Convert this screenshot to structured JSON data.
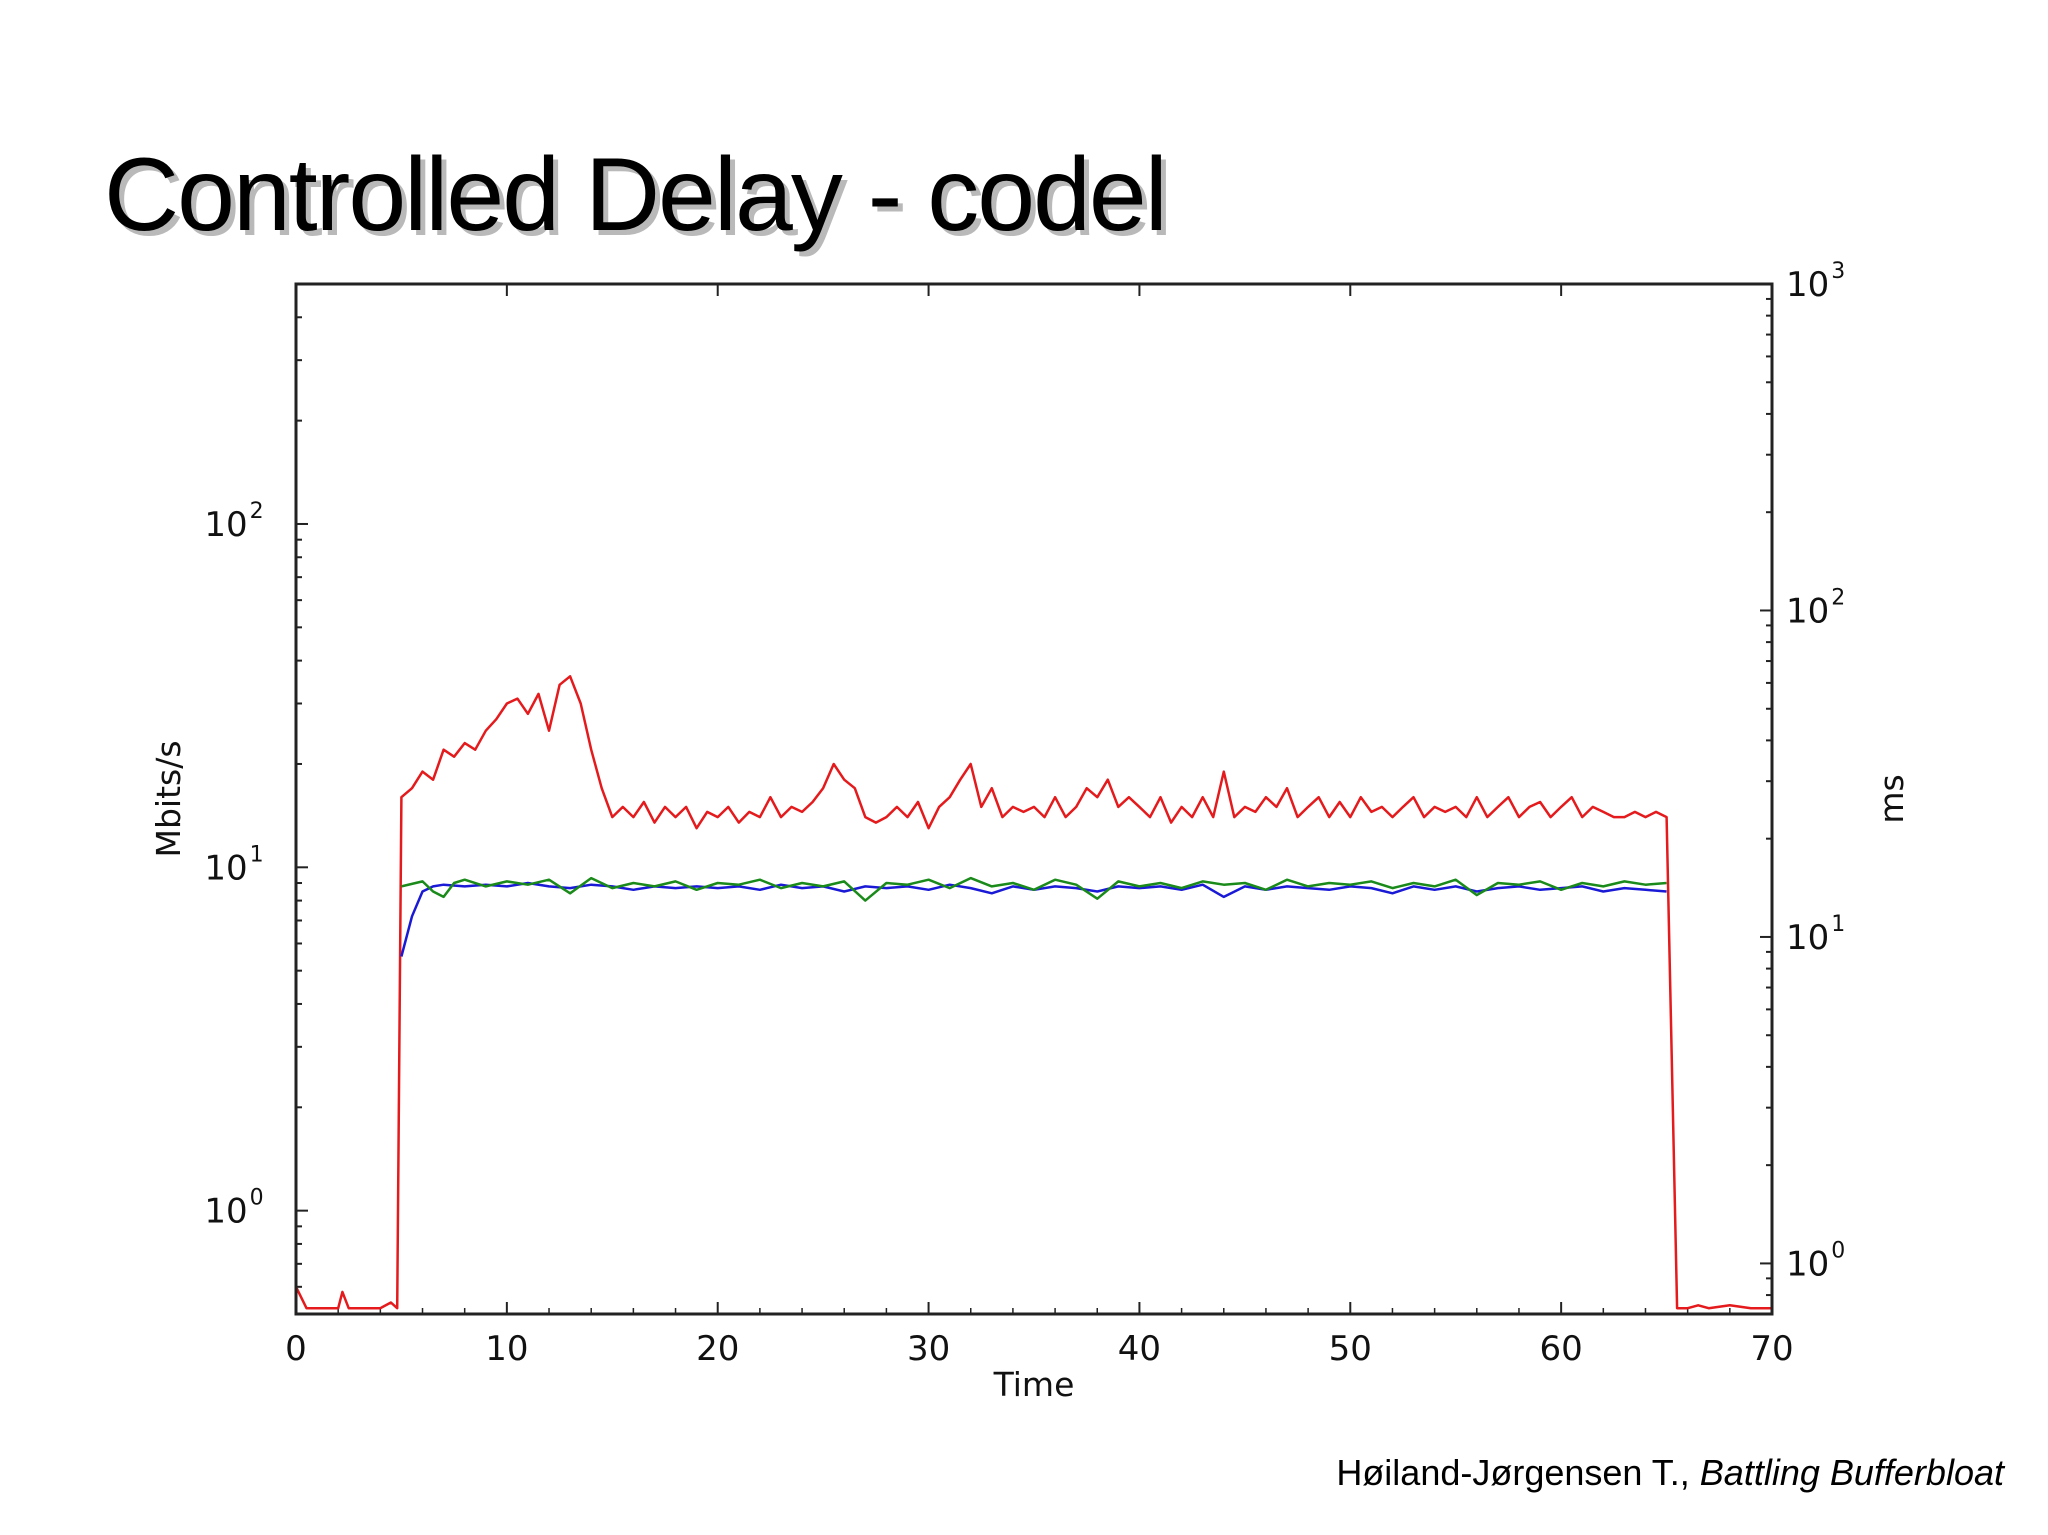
{
  "slide": {
    "title": "Controlled Delay - codel",
    "citation_author": "Høiland-Jørgensen T., ",
    "citation_work": "Battling Bufferbloat"
  },
  "chart_data": {
    "type": "line",
    "title": "",
    "xlabel": "Time",
    "ylabel_left": "Mbits/s",
    "ylabel_right": "ms",
    "xlim": [
      0,
      70
    ],
    "x_ticks": [
      0,
      10,
      20,
      30,
      40,
      50,
      60,
      70
    ],
    "x_tick_labels": [
      "0",
      "10",
      "20",
      "30",
      "40",
      "50",
      "60",
      "70"
    ],
    "y_left_scale": "log",
    "y_left_lim": [
      0.5,
      500
    ],
    "y_left_ticks": [
      {
        "base": "10",
        "exp": "0",
        "value": 1
      },
      {
        "base": "10",
        "exp": "1",
        "value": 10
      },
      {
        "base": "10",
        "exp": "2",
        "value": 100
      }
    ],
    "y_right_scale": "log",
    "y_right_lim": [
      0.7,
      1000
    ],
    "y_right_ticks": [
      {
        "base": "10",
        "exp": "0",
        "value": 1
      },
      {
        "base": "10",
        "exp": "1",
        "value": 10
      },
      {
        "base": "10",
        "exp": "2",
        "value": 100
      },
      {
        "base": "10",
        "exp": "3",
        "value": 1000
      }
    ],
    "grid": false,
    "legend": "none",
    "series": [
      {
        "color": "#e41a1c",
        "axis": "left",
        "points": [
          [
            0,
            0.6
          ],
          [
            0.5,
            0.52
          ],
          [
            1,
            0.52
          ],
          [
            1.5,
            0.52
          ],
          [
            2,
            0.52
          ],
          [
            2.2,
            0.58
          ],
          [
            2.5,
            0.52
          ],
          [
            3,
            0.52
          ],
          [
            4,
            0.52
          ],
          [
            4.5,
            0.54
          ],
          [
            4.8,
            0.52
          ],
          [
            5,
            16
          ],
          [
            5.5,
            17
          ],
          [
            6,
            19
          ],
          [
            6.5,
            18
          ],
          [
            7,
            22
          ],
          [
            7.5,
            21
          ],
          [
            8,
            23
          ],
          [
            8.5,
            22
          ],
          [
            9,
            25
          ],
          [
            9.5,
            27
          ],
          [
            10,
            30
          ],
          [
            10.5,
            31
          ],
          [
            11,
            28
          ],
          [
            11.5,
            32
          ],
          [
            12,
            25
          ],
          [
            12.5,
            34
          ],
          [
            13,
            36
          ],
          [
            13.5,
            30
          ],
          [
            14,
            22
          ],
          [
            14.5,
            17
          ],
          [
            15,
            14
          ],
          [
            15.5,
            15
          ],
          [
            16,
            14
          ],
          [
            16.5,
            15.5
          ],
          [
            17,
            13.5
          ],
          [
            17.5,
            15
          ],
          [
            18,
            14
          ],
          [
            18.5,
            15
          ],
          [
            19,
            13
          ],
          [
            19.5,
            14.5
          ],
          [
            20,
            14
          ],
          [
            20.5,
            15
          ],
          [
            21,
            13.5
          ],
          [
            21.5,
            14.5
          ],
          [
            22,
            14
          ],
          [
            22.5,
            16
          ],
          [
            23,
            14
          ],
          [
            23.5,
            15
          ],
          [
            24,
            14.5
          ],
          [
            24.5,
            15.5
          ],
          [
            25,
            17
          ],
          [
            25.5,
            20
          ],
          [
            26,
            18
          ],
          [
            26.5,
            17
          ],
          [
            27,
            14
          ],
          [
            27.5,
            13.5
          ],
          [
            28,
            14
          ],
          [
            28.5,
            15
          ],
          [
            29,
            14
          ],
          [
            29.5,
            15.5
          ],
          [
            30,
            13
          ],
          [
            30.5,
            15
          ],
          [
            31,
            16
          ],
          [
            31.5,
            18
          ],
          [
            32,
            20
          ],
          [
            32.5,
            15
          ],
          [
            33,
            17
          ],
          [
            33.5,
            14
          ],
          [
            34,
            15
          ],
          [
            34.5,
            14.5
          ],
          [
            35,
            15
          ],
          [
            35.5,
            14
          ],
          [
            36,
            16
          ],
          [
            36.5,
            14
          ],
          [
            37,
            15
          ],
          [
            37.5,
            17
          ],
          [
            38,
            16
          ],
          [
            38.5,
            18
          ],
          [
            39,
            15
          ],
          [
            39.5,
            16
          ],
          [
            40,
            15
          ],
          [
            40.5,
            14
          ],
          [
            41,
            16
          ],
          [
            41.5,
            13.5
          ],
          [
            42,
            15
          ],
          [
            42.5,
            14
          ],
          [
            43,
            16
          ],
          [
            43.5,
            14
          ],
          [
            44,
            19
          ],
          [
            44.5,
            14
          ],
          [
            45,
            15
          ],
          [
            45.5,
            14.5
          ],
          [
            46,
            16
          ],
          [
            46.5,
            15
          ],
          [
            47,
            17
          ],
          [
            47.5,
            14
          ],
          [
            48,
            15
          ],
          [
            48.5,
            16
          ],
          [
            49,
            14
          ],
          [
            49.5,
            15.5
          ],
          [
            50,
            14
          ],
          [
            50.5,
            16
          ],
          [
            51,
            14.5
          ],
          [
            51.5,
            15
          ],
          [
            52,
            14
          ],
          [
            52.5,
            15
          ],
          [
            53,
            16
          ],
          [
            53.5,
            14
          ],
          [
            54,
            15
          ],
          [
            54.5,
            14.5
          ],
          [
            55,
            15
          ],
          [
            55.5,
            14
          ],
          [
            56,
            16
          ],
          [
            56.5,
            14
          ],
          [
            57,
            15
          ],
          [
            57.5,
            16
          ],
          [
            58,
            14
          ],
          [
            58.5,
            15
          ],
          [
            59,
            15.5
          ],
          [
            59.5,
            14
          ],
          [
            60,
            15
          ],
          [
            60.5,
            16
          ],
          [
            61,
            14
          ],
          [
            61.5,
            15
          ],
          [
            62,
            14.5
          ],
          [
            62.5,
            14
          ],
          [
            63,
            14
          ],
          [
            63.5,
            14.5
          ],
          [
            64,
            14
          ],
          [
            64.5,
            14.5
          ],
          [
            65,
            14
          ],
          [
            65.5,
            0.52
          ],
          [
            66,
            0.52
          ],
          [
            66.5,
            0.53
          ],
          [
            67,
            0.52
          ],
          [
            68,
            0.53
          ],
          [
            69,
            0.52
          ],
          [
            70,
            0.52
          ]
        ]
      },
      {
        "color": "#1a1ad6",
        "axis": "left",
        "points": [
          [
            5,
            5.5
          ],
          [
            5.5,
            7.2
          ],
          [
            6,
            8.5
          ],
          [
            6.5,
            8.8
          ],
          [
            7,
            8.9
          ],
          [
            8,
            8.8
          ],
          [
            9,
            8.9
          ],
          [
            10,
            8.8
          ],
          [
            11,
            9
          ],
          [
            12,
            8.8
          ],
          [
            13,
            8.7
          ],
          [
            14,
            8.9
          ],
          [
            15,
            8.8
          ],
          [
            16,
            8.6
          ],
          [
            17,
            8.8
          ],
          [
            18,
            8.7
          ],
          [
            19,
            8.8
          ],
          [
            20,
            8.7
          ],
          [
            21,
            8.8
          ],
          [
            22,
            8.6
          ],
          [
            23,
            8.9
          ],
          [
            24,
            8.7
          ],
          [
            25,
            8.8
          ],
          [
            26,
            8.5
          ],
          [
            27,
            8.8
          ],
          [
            28,
            8.7
          ],
          [
            29,
            8.8
          ],
          [
            30,
            8.6
          ],
          [
            31,
            8.9
          ],
          [
            32,
            8.7
          ],
          [
            33,
            8.4
          ],
          [
            34,
            8.8
          ],
          [
            35,
            8.6
          ],
          [
            36,
            8.8
          ],
          [
            37,
            8.7
          ],
          [
            38,
            8.5
          ],
          [
            39,
            8.8
          ],
          [
            40,
            8.7
          ],
          [
            41,
            8.8
          ],
          [
            42,
            8.6
          ],
          [
            43,
            8.9
          ],
          [
            44,
            8.2
          ],
          [
            45,
            8.8
          ],
          [
            46,
            8.6
          ],
          [
            47,
            8.8
          ],
          [
            48,
            8.7
          ],
          [
            49,
            8.6
          ],
          [
            50,
            8.8
          ],
          [
            51,
            8.7
          ],
          [
            52,
            8.4
          ],
          [
            53,
            8.8
          ],
          [
            54,
            8.6
          ],
          [
            55,
            8.8
          ],
          [
            56,
            8.5
          ],
          [
            57,
            8.7
          ],
          [
            58,
            8.8
          ],
          [
            59,
            8.6
          ],
          [
            60,
            8.7
          ],
          [
            61,
            8.8
          ],
          [
            62,
            8.5
          ],
          [
            63,
            8.7
          ],
          [
            64,
            8.6
          ],
          [
            65,
            8.5
          ]
        ]
      },
      {
        "color": "#1a8a1a",
        "axis": "left",
        "points": [
          [
            5,
            8.8
          ],
          [
            6,
            9.1
          ],
          [
            6.5,
            8.5
          ],
          [
            7,
            8.2
          ],
          [
            7.5,
            9
          ],
          [
            8,
            9.2
          ],
          [
            9,
            8.8
          ],
          [
            10,
            9.1
          ],
          [
            11,
            8.9
          ],
          [
            12,
            9.2
          ],
          [
            13,
            8.4
          ],
          [
            14,
            9.3
          ],
          [
            15,
            8.7
          ],
          [
            16,
            9
          ],
          [
            17,
            8.8
          ],
          [
            18,
            9.1
          ],
          [
            19,
            8.6
          ],
          [
            20,
            9
          ],
          [
            21,
            8.9
          ],
          [
            22,
            9.2
          ],
          [
            23,
            8.7
          ],
          [
            24,
            9
          ],
          [
            25,
            8.8
          ],
          [
            26,
            9.1
          ],
          [
            27,
            8
          ],
          [
            28,
            9
          ],
          [
            29,
            8.9
          ],
          [
            30,
            9.2
          ],
          [
            31,
            8.7
          ],
          [
            32,
            9.3
          ],
          [
            33,
            8.8
          ],
          [
            34,
            9
          ],
          [
            35,
            8.6
          ],
          [
            36,
            9.2
          ],
          [
            37,
            8.9
          ],
          [
            38,
            8.1
          ],
          [
            39,
            9.1
          ],
          [
            40,
            8.8
          ],
          [
            41,
            9
          ],
          [
            42,
            8.7
          ],
          [
            43,
            9.1
          ],
          [
            44,
            8.9
          ],
          [
            45,
            9
          ],
          [
            46,
            8.6
          ],
          [
            47,
            9.2
          ],
          [
            48,
            8.8
          ],
          [
            49,
            9
          ],
          [
            50,
            8.9
          ],
          [
            51,
            9.1
          ],
          [
            52,
            8.7
          ],
          [
            53,
            9
          ],
          [
            54,
            8.8
          ],
          [
            55,
            9.2
          ],
          [
            56,
            8.3
          ],
          [
            57,
            9
          ],
          [
            58,
            8.9
          ],
          [
            59,
            9.1
          ],
          [
            60,
            8.6
          ],
          [
            61,
            9
          ],
          [
            62,
            8.8
          ],
          [
            63,
            9.1
          ],
          [
            64,
            8.9
          ],
          [
            65,
            9
          ]
        ]
      }
    ]
  }
}
